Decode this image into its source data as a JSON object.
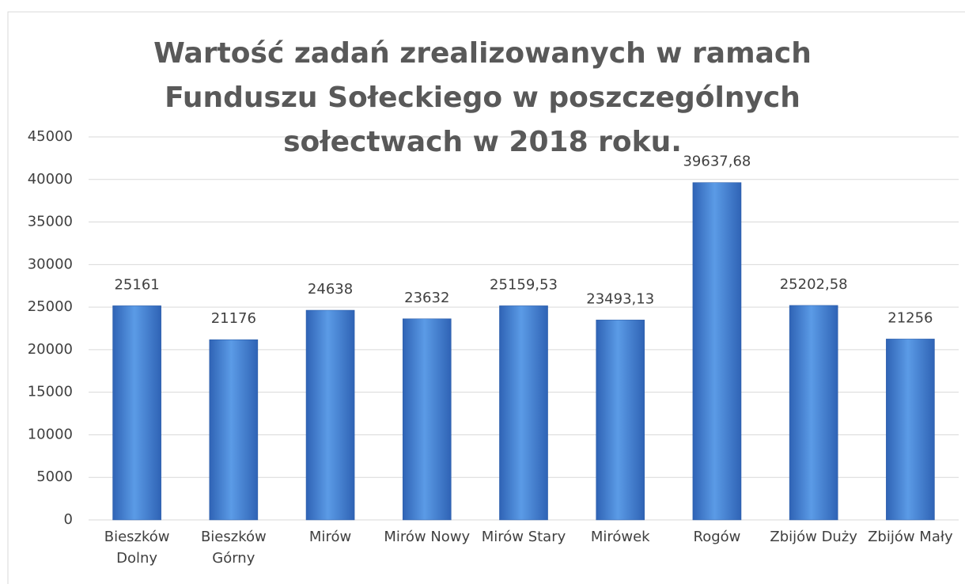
{
  "chart_data": {
    "type": "bar",
    "title": "Wartość zadań zrealizowanych w ramach Funduszu Sołeckiego w poszczególnych sołectwach w 2018 roku.",
    "categories": [
      "Bieszków Dolny",
      "Bieszków Górny",
      "Mirów",
      "Mirów Nowy",
      "Mirów Stary",
      "Mirówek",
      "Rogów",
      "Zbijów Duży",
      "Zbijów Mały"
    ],
    "values": [
      25161,
      21176,
      24638,
      23632,
      25159.53,
      23493.13,
      39637.68,
      25202.58,
      21256
    ],
    "value_labels": [
      "25161",
      "21176",
      "24638",
      "23632",
      "25159,53",
      "23493,13",
      "39637,68",
      "25202,58",
      "21256"
    ],
    "color": "#4a86d6",
    "ylim": [
      0,
      45000
    ],
    "yticks": [
      0,
      5000,
      10000,
      15000,
      20000,
      25000,
      30000,
      35000,
      40000,
      45000
    ],
    "grid": true
  }
}
